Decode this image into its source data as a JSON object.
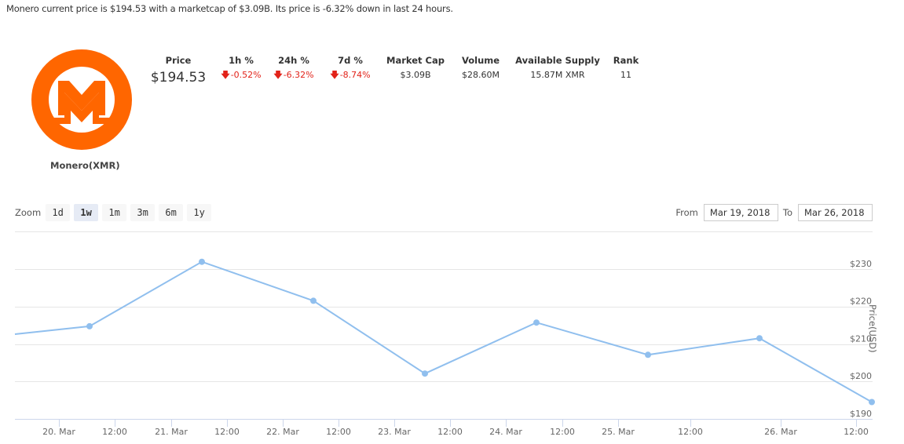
{
  "summary": "Monero current price is $194.53 with a marketcap of $3.09B. Its price is -6.32% down in last 24 hours.",
  "coin": {
    "name": "Monero(XMR)",
    "logo_icon": "monero-logo-icon",
    "logo_color": "#ff6600"
  },
  "stats": [
    {
      "key": "price",
      "label": "Price",
      "value": "$194.53",
      "negative": false
    },
    {
      "key": "1h",
      "label": "1h %",
      "value": "-0.52%",
      "negative": true
    },
    {
      "key": "24h",
      "label": "24h %",
      "value": "-6.32%",
      "negative": true
    },
    {
      "key": "7d",
      "label": "7d %",
      "value": "-8.74%",
      "negative": true
    },
    {
      "key": "marketcap",
      "label": "Market Cap",
      "value": "$3.09B",
      "negative": false
    },
    {
      "key": "volume",
      "label": "Volume",
      "value": "$28.60M",
      "negative": false
    },
    {
      "key": "supply",
      "label": "Available Supply",
      "value": "15.87M XMR",
      "negative": false
    },
    {
      "key": "rank",
      "label": "Rank",
      "value": "11",
      "negative": false
    }
  ],
  "down_arrow": "🡇",
  "zoom": {
    "label": "Zoom",
    "buttons": [
      "1d",
      "1w",
      "1m",
      "3m",
      "6m",
      "1y"
    ],
    "active": "1w"
  },
  "range": {
    "from_label": "From",
    "from_value": "Mar 19, 2018",
    "to_label": "To",
    "to_value": "Mar 26, 2018"
  },
  "colors": {
    "line": "#90bfee",
    "negative": "#e2231a",
    "grid": "#e6e6e6",
    "axis": "#ccd6eb"
  },
  "chart_data": {
    "type": "line",
    "title": "",
    "xlabel": "",
    "ylabel": "Price(USD)",
    "ylim": [
      190,
      240
    ],
    "yticks": [
      "$190",
      "$200",
      "$210",
      "$220",
      "$230"
    ],
    "xticks": [
      "20. Mar",
      "12:00",
      "21. Mar",
      "12:00",
      "22. Mar",
      "12:00",
      "23. Mar",
      "12:00",
      "24. Mar",
      "12:00",
      "25. Mar",
      "12:00",
      "26. Mar",
      "12:00"
    ],
    "grid": true,
    "legend": "none",
    "series": [
      {
        "name": "Price(USD)",
        "x": [
          "19. Mar ~18:00",
          "20. Mar ~06:00",
          "21. Mar ~06:00",
          "22. Mar ~06:00",
          "23. Mar ~06:00",
          "24. Mar ~06:00",
          "25. Mar ~06:00",
          "26. Mar ~06:00",
          "26. Mar ~12:00"
        ],
        "values": [
          212.6,
          214.7,
          231.9,
          221.5,
          202.1,
          215.7,
          207.1,
          211.5,
          194.5
        ]
      }
    ]
  }
}
